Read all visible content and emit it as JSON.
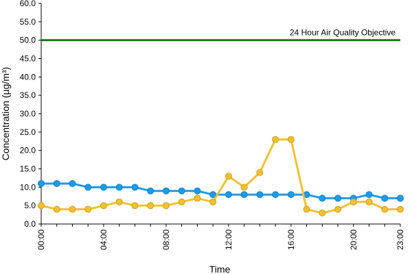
{
  "chart_data": {
    "type": "line",
    "title": "",
    "xlabel": "Time",
    "ylabel": "Concentration (µg/m³)",
    "ylim": [
      0,
      60
    ],
    "y_ticks": [
      "0.0",
      "5.0",
      "10.0",
      "15.0",
      "20.0",
      "25.0",
      "30.0",
      "35.0",
      "40.0",
      "45.0",
      "50.0",
      "55.0",
      "60.0"
    ],
    "x_ticks": [
      "00:00",
      "04:00",
      "08:00",
      "12:00",
      "16:00",
      "20:00",
      "23:00"
    ],
    "x_tick_hours": [
      0,
      4,
      8,
      12,
      16,
      20,
      23
    ],
    "x_hours": [
      0,
      1,
      2,
      3,
      4,
      5,
      6,
      7,
      8,
      9,
      10,
      11,
      12,
      13,
      14,
      15,
      16,
      17,
      18,
      19,
      20,
      21,
      22,
      23
    ],
    "grid": false,
    "legend": "none",
    "objective": {
      "label": "24 Hour Air Quality Objective",
      "value": 50,
      "color": "#1a7a1a"
    },
    "series": [
      {
        "color": "#1e9be8",
        "values": [
          11,
          11,
          11,
          10,
          10,
          10,
          10,
          9,
          9,
          9,
          9,
          8,
          8,
          8,
          8,
          8,
          8,
          8,
          7,
          7,
          7,
          8,
          7,
          7
        ]
      },
      {
        "color": "#f2c12e",
        "values": [
          5,
          4,
          4,
          4,
          5,
          6,
          5,
          5,
          5,
          6,
          7,
          6,
          13,
          10,
          14,
          23,
          23,
          4,
          3,
          4,
          6,
          6,
          4,
          4
        ]
      }
    ]
  }
}
